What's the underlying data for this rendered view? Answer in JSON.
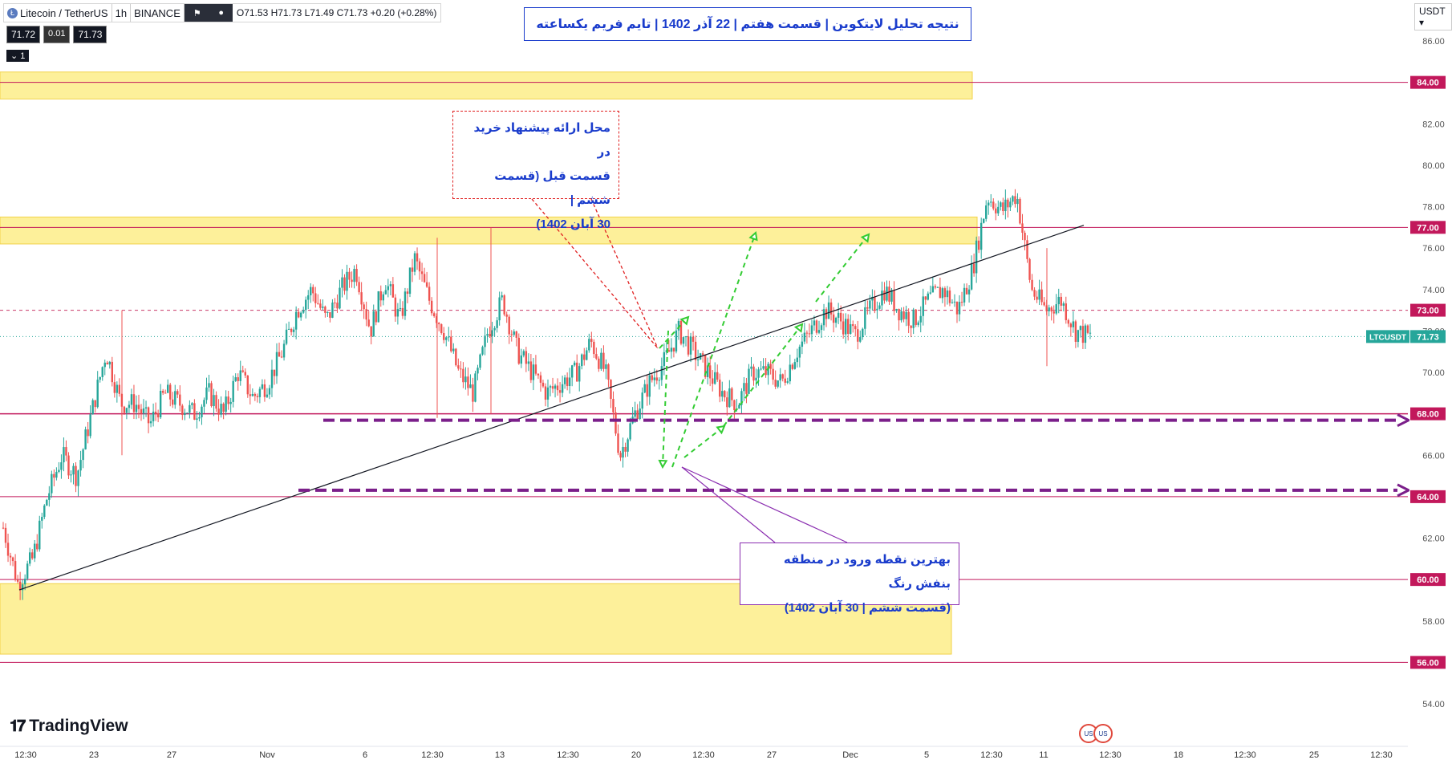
{
  "header": {
    "symbol": "Litecoin / TetherUS",
    "interval": "1h",
    "exchange": "BINANCE",
    "ohlc": "O71.53 H71.73 L71.49 C71.73 +0.20 (+0.28%)",
    "bid": "71.72",
    "spread": "0.01",
    "ask": "71.73",
    "collapse_label": "1"
  },
  "title": "نتیجه تحلیل لایتکوین | قسمت هفتم | 22 آذر 1402 | تایم فریم یکساعته",
  "annotation_buy_lines": [
    "محل ارائه پیشنهاد خرید در",
    "قسمت قبل (قسمت ششم |",
    "30 آبان 1402)"
  ],
  "annotation_entry_lines": [
    "بهترین نقطه ورود در منطقه بنفش رنگ",
    "(قسمت ششم | 30 آبان 1402)"
  ],
  "currency": "USDT",
  "brand": "TradingView",
  "price_tag_label": "LTCUSDT",
  "price_tag_value": "71.73",
  "level_labels": [
    "84.00",
    "77.00",
    "73.00",
    "68.00",
    "64.00",
    "60.00",
    "56.00"
  ],
  "chart_data": {
    "type": "candlestick",
    "symbol": "LTCUSDT",
    "timeframe": "1h",
    "y_range": [
      53,
      87
    ],
    "y_ticks": [
      "86.00",
      "84.00",
      "82.00",
      "80.00",
      "78.00",
      "76.00",
      "74.00",
      "72.00",
      "70.00",
      "68.00",
      "66.00",
      "64.00",
      "62.00",
      "60.00",
      "58.00",
      "56.00",
      "54.00"
    ],
    "x_ticks": [
      "12:30",
      "23",
      "27",
      "Nov",
      "6",
      "12:30",
      "13",
      "12:30",
      "20",
      "12:30",
      "27",
      "Dec",
      "5",
      "12:30",
      "11",
      "12:30",
      "18",
      "12:30",
      "25",
      "12:30"
    ],
    "last_price": 71.73,
    "horizontal_levels": [
      84,
      77,
      73,
      68,
      64,
      60,
      56
    ],
    "zones": [
      [
        83.2,
        84.5
      ],
      [
        76.2,
        77.5
      ],
      [
        56.4,
        59.8
      ]
    ],
    "price_path": [
      [
        0,
        62.5
      ],
      [
        1,
        59.8
      ],
      [
        2,
        61
      ],
      [
        3,
        64
      ],
      [
        4,
        66
      ],
      [
        5,
        65
      ],
      [
        6,
        68
      ],
      [
        7,
        71
      ],
      [
        8,
        68.5
      ],
      [
        9,
        68.5
      ],
      [
        10,
        67.5
      ],
      [
        11,
        69
      ],
      [
        12,
        68.5
      ],
      [
        13,
        68
      ],
      [
        14,
        69
      ],
      [
        15,
        68
      ],
      [
        16,
        70
      ],
      [
        17,
        68.8
      ],
      [
        18,
        69.5
      ],
      [
        19,
        71
      ],
      [
        20,
        73
      ],
      [
        21,
        74
      ],
      [
        22,
        72.5
      ],
      [
        23,
        74
      ],
      [
        24,
        75
      ],
      [
        25,
        72
      ],
      [
        26,
        74.5
      ],
      [
        27,
        72.5
      ],
      [
        28,
        75.5
      ],
      [
        29,
        73.5
      ],
      [
        30,
        72
      ],
      [
        31,
        70
      ],
      [
        32,
        69
      ],
      [
        33,
        72
      ],
      [
        34,
        73.5
      ],
      [
        35,
        71
      ],
      [
        36,
        70
      ],
      [
        37,
        69
      ],
      [
        38,
        69.5
      ],
      [
        39,
        70
      ],
      [
        40,
        71.5
      ],
      [
        41,
        70
      ],
      [
        42,
        66
      ],
      [
        43,
        68
      ],
      [
        44,
        69.5
      ],
      [
        45,
        70.5
      ],
      [
        46,
        72
      ],
      [
        47,
        71
      ],
      [
        48,
        70
      ],
      [
        49,
        69
      ],
      [
        50,
        68.5
      ],
      [
        51,
        70
      ],
      [
        52,
        70
      ],
      [
        53,
        69.5
      ],
      [
        54,
        71
      ],
      [
        55,
        72
      ],
      [
        56,
        73
      ],
      [
        57,
        72.5
      ],
      [
        58,
        71.8
      ],
      [
        59,
        73
      ],
      [
        60,
        74
      ],
      [
        61,
        73
      ],
      [
        62,
        72.5
      ],
      [
        63,
        73.5
      ],
      [
        64,
        74
      ],
      [
        65,
        73
      ],
      [
        66,
        75
      ],
      [
        67,
        78.5
      ],
      [
        68,
        77.8
      ],
      [
        69,
        78.6
      ],
      [
        70,
        74
      ],
      [
        71,
        73
      ],
      [
        72,
        73.5
      ],
      [
        73,
        72
      ],
      [
        74,
        71.7
      ]
    ],
    "trendline": {
      "from": [
        "12:30 (Oct 19)",
        59.5
      ],
      "to": [
        "Dec 12",
        77
      ]
    }
  }
}
